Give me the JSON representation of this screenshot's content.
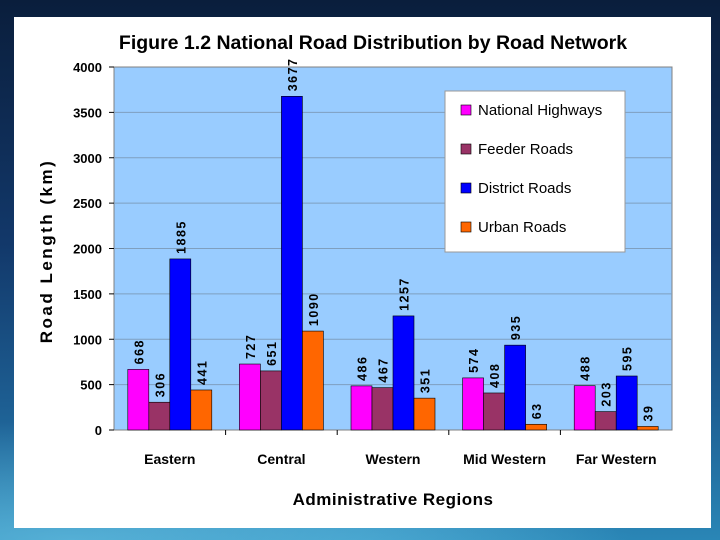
{
  "colors": {
    "plot_bg": "#99ccff",
    "grid": "#7f9fbf",
    "national": "#ff00ff",
    "feeder": "#993366",
    "district": "#0000ff",
    "urban": "#ff6600"
  },
  "chart_data": {
    "type": "bar",
    "title": "Figure 1.2 National Road Distribution by Road Network",
    "xlabel": "Administrative Regions",
    "ylabel": "Road Length (km)",
    "ylim": [
      0,
      4000
    ],
    "ytick_step": 500,
    "grid": true,
    "legend_position": "top-right",
    "categories": [
      "Eastern",
      "Central",
      "Western",
      "Mid Western",
      "Far Western"
    ],
    "series": [
      {
        "name": "National Highways",
        "color_key": "national",
        "values": [
          668,
          727,
          486,
          574,
          488
        ]
      },
      {
        "name": "Feeder Roads",
        "color_key": "feeder",
        "values": [
          306,
          651,
          467,
          408,
          203
        ]
      },
      {
        "name": "District Roads",
        "color_key": "district",
        "values": [
          1885,
          3677,
          1257,
          935,
          595
        ]
      },
      {
        "name": "Urban Roads",
        "color_key": "urban",
        "values": [
          441,
          1090,
          351,
          63,
          39
        ]
      }
    ]
  }
}
